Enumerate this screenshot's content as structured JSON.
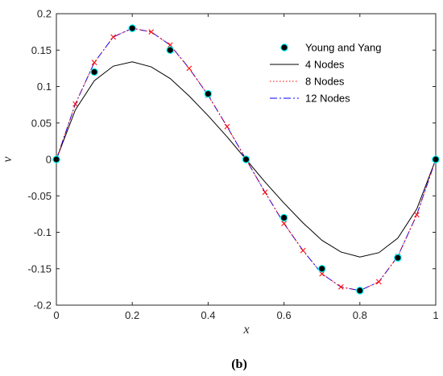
{
  "chart_data": {
    "type": "line",
    "xlabel": "x",
    "ylabel": "v",
    "caption": "(b)",
    "xlim": [
      0,
      1
    ],
    "ylim": [
      -0.2,
      0.2
    ],
    "xticks": [
      0,
      0.2,
      0.4,
      0.6,
      0.8,
      1
    ],
    "xtick_labels": [
      "0",
      "0.2",
      "0.4",
      "0.6",
      "0.8",
      "1"
    ],
    "yticks": [
      -0.2,
      -0.15,
      -0.1,
      -0.05,
      0,
      0.05,
      0.1,
      0.15,
      0.2
    ],
    "ytick_labels": [
      "-0.2",
      "-0.15",
      "-0.1",
      "-0.05",
      "0",
      "0.05",
      "0.1",
      "0.15",
      "0.2"
    ],
    "grid": false,
    "legend_position": "top-right",
    "series": [
      {
        "name": "Young and Yang",
        "style": "markers",
        "marker": "filled-circle",
        "color": "#000000",
        "edge_color": "#00ffff",
        "x": [
          0,
          0.1,
          0.2,
          0.3,
          0.4,
          0.5,
          0.6,
          0.7,
          0.8,
          0.9,
          1.0
        ],
        "y": [
          0,
          0.12,
          0.18,
          0.15,
          0.09,
          0,
          -0.08,
          -0.15,
          -0.18,
          -0.135,
          0
        ]
      },
      {
        "name": "4 Nodes",
        "style": "solid",
        "color": "#000000",
        "x": [
          0,
          0.05,
          0.1,
          0.15,
          0.2,
          0.25,
          0.3,
          0.35,
          0.4,
          0.45,
          0.5,
          0.55,
          0.6,
          0.65,
          0.7,
          0.75,
          0.8,
          0.85,
          0.9,
          0.95,
          1.0
        ],
        "y": [
          0,
          0.068,
          0.108,
          0.128,
          0.134,
          0.127,
          0.111,
          0.087,
          0.06,
          0.031,
          0,
          -0.031,
          -0.06,
          -0.087,
          -0.111,
          -0.127,
          -0.134,
          -0.128,
          -0.108,
          -0.068,
          0
        ]
      },
      {
        "name": "8 Nodes",
        "style": "dotted",
        "marker": "x",
        "color": "#ff0000",
        "x": [
          0,
          0.05,
          0.1,
          0.15,
          0.2,
          0.25,
          0.3,
          0.35,
          0.4,
          0.45,
          0.5,
          0.55,
          0.6,
          0.65,
          0.7,
          0.75,
          0.8,
          0.85,
          0.9,
          0.95,
          1.0
        ],
        "y": [
          0,
          0.076,
          0.133,
          0.168,
          0.18,
          0.175,
          0.157,
          0.125,
          0.088,
          0.045,
          0,
          -0.045,
          -0.088,
          -0.125,
          -0.157,
          -0.175,
          -0.18,
          -0.168,
          -0.133,
          -0.076,
          0
        ]
      },
      {
        "name": "12 Nodes",
        "style": "dash-dot",
        "color": "#0000ff",
        "x": [
          0,
          0.05,
          0.1,
          0.15,
          0.2,
          0.25,
          0.3,
          0.35,
          0.4,
          0.45,
          0.5,
          0.55,
          0.6,
          0.65,
          0.7,
          0.75,
          0.8,
          0.85,
          0.9,
          0.95,
          1.0
        ],
        "y": [
          0,
          0.076,
          0.133,
          0.168,
          0.18,
          0.175,
          0.157,
          0.125,
          0.088,
          0.045,
          0,
          -0.045,
          -0.088,
          -0.125,
          -0.157,
          -0.175,
          -0.18,
          -0.168,
          -0.133,
          -0.076,
          0
        ]
      }
    ]
  }
}
